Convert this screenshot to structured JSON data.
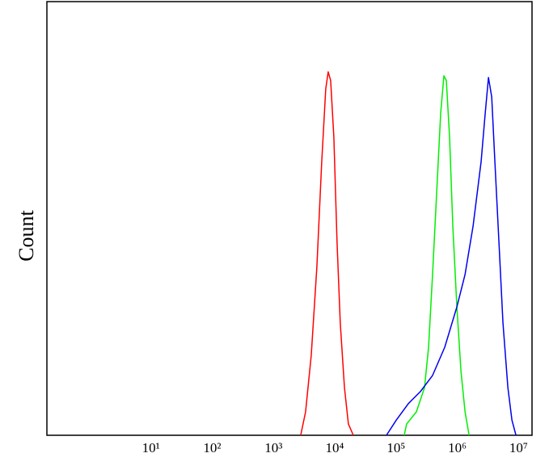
{
  "chart_data": {
    "type": "line",
    "y_label": "Count",
    "x_log": true,
    "xlim": [
      0.2,
      16600000
    ],
    "ylim": [
      0,
      100
    ],
    "xticks": [
      {
        "value": 10,
        "label": "10¹"
      },
      {
        "value": 100,
        "label": "10²"
      },
      {
        "value": 1000,
        "label": "10³"
      },
      {
        "value": 10000,
        "label": "10⁴"
      },
      {
        "value": 100000,
        "label": "10⁵"
      },
      {
        "value": 1000000,
        "label": "10⁶"
      },
      {
        "value": 10000000,
        "label": "10⁷"
      }
    ],
    "series": [
      {
        "color": "#ff0000",
        "x": [
          2780,
          3340,
          4130,
          5110,
          6130,
          7130,
          7810,
          8570,
          9670,
          10900,
          12300,
          14400,
          16700,
          20100
        ],
        "values": [
          0,
          5.4,
          18.4,
          38.9,
          63.1,
          79.9,
          83.8,
          81.8,
          68.7,
          44.5,
          25.9,
          11.0,
          2.6,
          0
        ]
      },
      {
        "color": "#00ee00",
        "x": [
          136000,
          149000,
          215000,
          292000,
          340000,
          395000,
          460000,
          536000,
          605000,
          663000,
          749000,
          846000,
          985000,
          1150000,
          1340000,
          1560000
        ],
        "values": [
          0,
          2.6,
          5.4,
          11.0,
          20.3,
          37.1,
          55.7,
          74.3,
          82.9,
          81.8,
          68.7,
          48.2,
          29.6,
          14.7,
          5.4,
          0
        ]
      },
      {
        "color": "#0000ee",
        "x": [
          69800,
          101000,
          159000,
          251000,
          395000,
          624000,
          985000,
          1340000,
          1810000,
          2450000,
          2860000,
          3230000,
          3650000,
          4110000,
          4790000,
          5570000,
          6700000,
          7800000,
          9080000
        ],
        "values": [
          0,
          3.5,
          7.3,
          10.1,
          13.8,
          20.3,
          29.6,
          37.1,
          48.2,
          63.1,
          74.3,
          82.5,
          78.0,
          63.1,
          44.5,
          25.9,
          11.0,
          3.5,
          0
        ]
      }
    ]
  }
}
